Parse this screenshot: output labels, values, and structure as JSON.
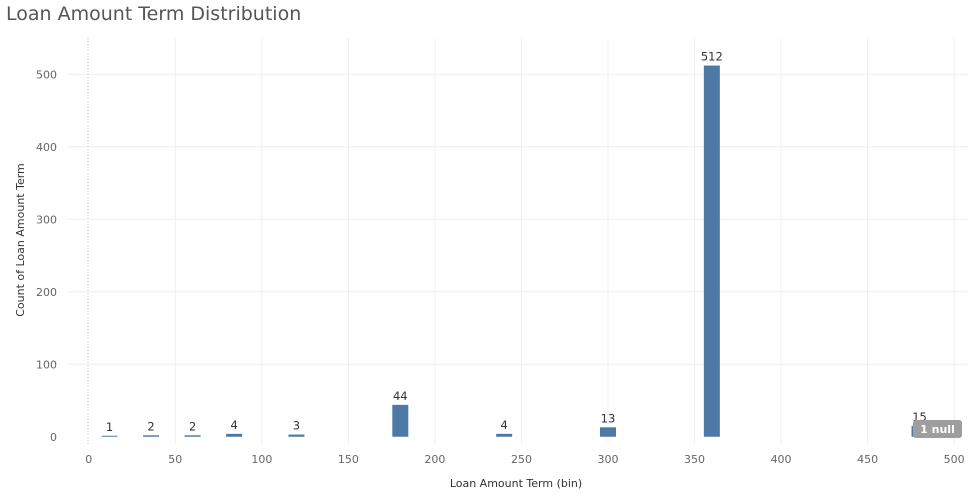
{
  "chart_data": {
    "type": "bar",
    "title": "Loan Amount Term Distribution",
    "xlabel": "Loan Amount Term (bin)",
    "ylabel": "Count of Loan Amount Term",
    "xlim": [
      -12,
      508
    ],
    "ylim": [
      -10,
      550
    ],
    "x_ticks": [
      "0",
      "50",
      "100",
      "150",
      "200",
      "250",
      "300",
      "350",
      "400",
      "450",
      "500"
    ],
    "y_ticks": [
      "0",
      "100",
      "200",
      "300",
      "400",
      "500"
    ],
    "bars": [
      {
        "x": 12,
        "value": 1,
        "label": "1"
      },
      {
        "x": 36,
        "value": 2,
        "label": "2"
      },
      {
        "x": 60,
        "value": 2,
        "label": "2"
      },
      {
        "x": 84,
        "value": 4,
        "label": "4"
      },
      {
        "x": 120,
        "value": 3,
        "label": "3"
      },
      {
        "x": 180,
        "value": 44,
        "label": "44"
      },
      {
        "x": 240,
        "value": 4,
        "label": "4"
      },
      {
        "x": 300,
        "value": 13,
        "label": "13"
      },
      {
        "x": 360,
        "value": 512,
        "label": "512"
      },
      {
        "x": 480,
        "value": 15,
        "label": "15"
      }
    ],
    "null_indicator": "1 null",
    "grid": true,
    "bar_color": "#4e79a7"
  }
}
